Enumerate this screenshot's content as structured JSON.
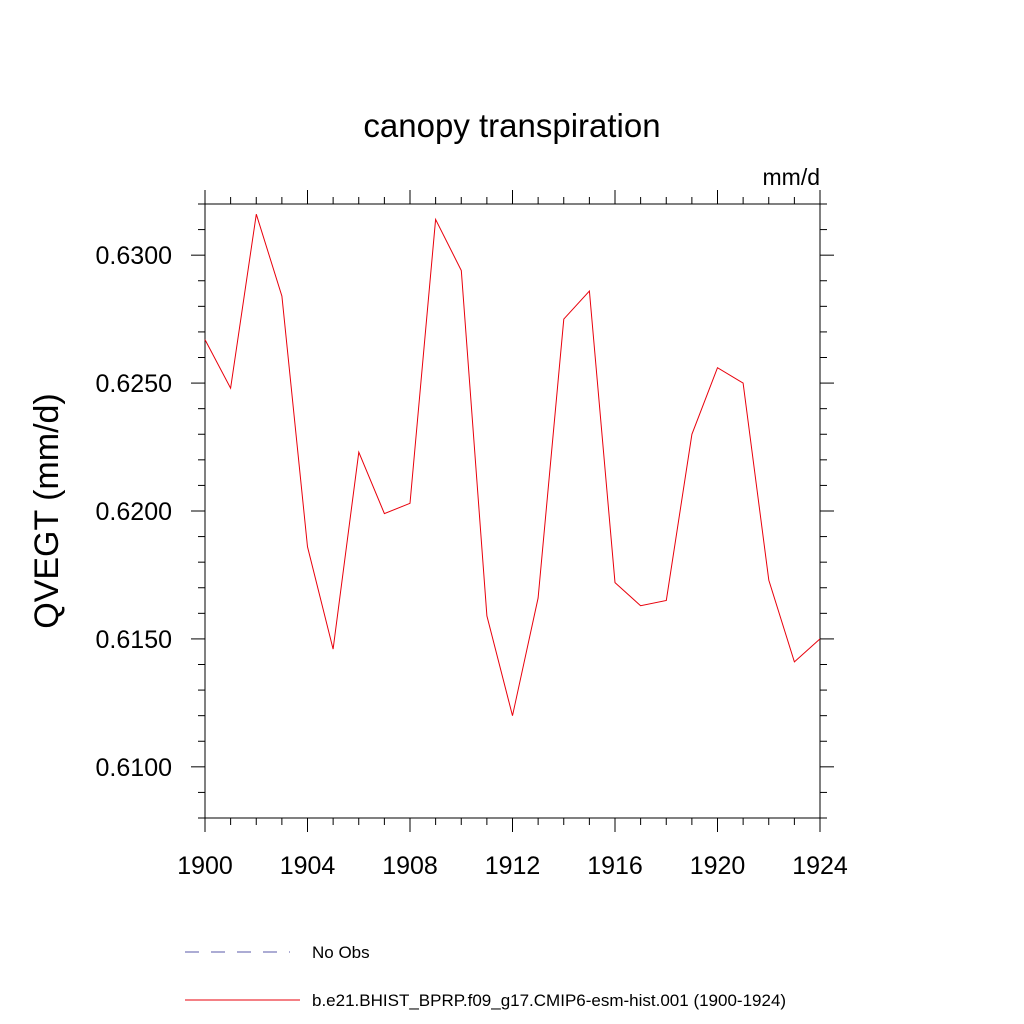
{
  "chart_data": {
    "type": "line",
    "title": "canopy transpiration",
    "units_label": "mm/d",
    "ylabel": "QVEGT  (mm/d)",
    "xlabel": "",
    "xlim": [
      1900,
      1924
    ],
    "ylim": [
      0.608,
      0.632
    ],
    "x_ticks": [
      1900,
      1904,
      1908,
      1912,
      1916,
      1920,
      1924
    ],
    "x_tick_labels": [
      "1900",
      "1904",
      "1908",
      "1912",
      "1916",
      "1920",
      "1924"
    ],
    "y_ticks": [
      0.61,
      0.615,
      0.62,
      0.625,
      0.63
    ],
    "y_tick_labels": [
      "0.6100",
      "0.6150",
      "0.6200",
      "0.6250",
      "0.6300"
    ],
    "grid": false,
    "legend_position": "bottom",
    "series": [
      {
        "name": "b.e21.BHIST_BPRP.f09_g17.CMIP6-esm-hist.001 (1900-1924)",
        "color": "#e8000b",
        "style": "solid",
        "x": [
          1900,
          1901,
          1902,
          1903,
          1904,
          1905,
          1906,
          1907,
          1908,
          1909,
          1910,
          1911,
          1912,
          1913,
          1914,
          1915,
          1916,
          1917,
          1918,
          1919,
          1920,
          1921,
          1922,
          1923,
          1924
        ],
        "values": [
          0.6267,
          0.6248,
          0.6316,
          0.6284,
          0.6186,
          0.6146,
          0.6223,
          0.6199,
          0.6203,
          0.6314,
          0.6294,
          0.6159,
          0.612,
          0.6166,
          0.6275,
          0.6286,
          0.6172,
          0.6163,
          0.6165,
          0.623,
          0.6256,
          0.625,
          0.6173,
          0.6141,
          0.615
        ]
      }
    ],
    "legend": [
      {
        "label": "No Obs",
        "color": "#5a5aa8",
        "style": "dashed"
      },
      {
        "label": "b.e21.BHIST_BPRP.f09_g17.CMIP6-esm-hist.001 (1900-1924)",
        "color": "#e8000b",
        "style": "solid"
      }
    ]
  }
}
